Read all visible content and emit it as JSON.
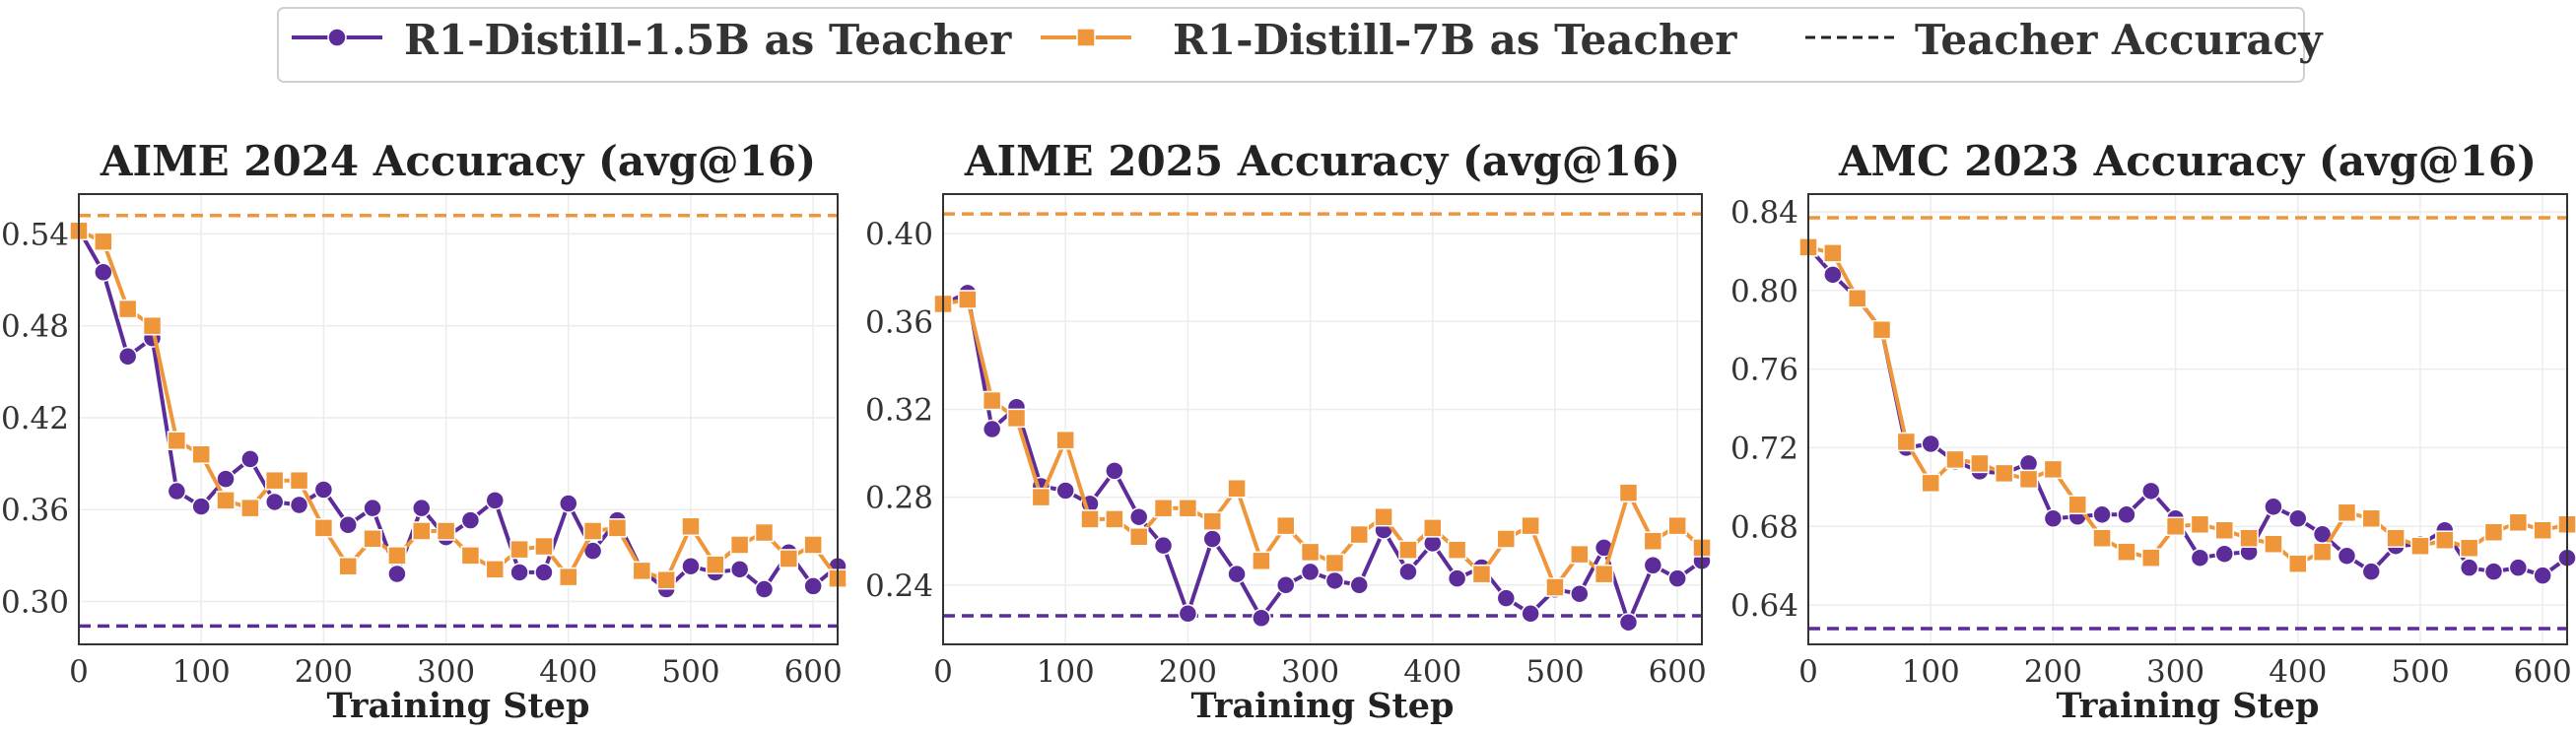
{
  "colors": {
    "purple": "#5B2C9A",
    "orange": "#F0963A",
    "teacher": "#222222"
  },
  "legend": {
    "items": [
      {
        "label": "R1-Distill-1.5B as Teacher",
        "color": "#5B2C9A",
        "marker": "circle",
        "style": "solid"
      },
      {
        "label": "R1-Distill-7B as Teacher",
        "color": "#F0963A",
        "marker": "square",
        "style": "solid"
      },
      {
        "label": "Teacher Accuracy",
        "color": "#222222",
        "marker": "none",
        "style": "dashed"
      }
    ]
  },
  "chart_data": [
    {
      "type": "line",
      "title": "AIME 2024 Accuracy (avg@16)",
      "xlabel": "Training Step",
      "ylabel": "",
      "xlim": [
        0,
        620
      ],
      "ylim": [
        0.272,
        0.566
      ],
      "xticks": [
        0,
        100,
        200,
        300,
        400,
        500,
        600
      ],
      "yticks": [
        0.3,
        0.36,
        0.42,
        0.48,
        0.54
      ],
      "ytick_labels": [
        "0.30",
        "0.36",
        "0.42",
        "0.48",
        "0.54"
      ],
      "grid": true,
      "x": [
        0,
        20,
        40,
        60,
        80,
        100,
        120,
        140,
        160,
        180,
        200,
        220,
        240,
        260,
        280,
        300,
        320,
        340,
        360,
        380,
        400,
        420,
        440,
        460,
        480,
        500,
        520,
        540,
        560,
        580,
        600,
        620
      ],
      "series": [
        {
          "name": "R1-Distill-1.5B as Teacher",
          "color": "#5B2C9A",
          "marker": "circle",
          "values": [
            0.543,
            0.515,
            0.46,
            0.472,
            0.372,
            0.362,
            0.38,
            0.393,
            0.365,
            0.363,
            0.373,
            0.35,
            0.361,
            0.318,
            0.361,
            0.342,
            0.353,
            0.366,
            0.319,
            0.319,
            0.364,
            0.333,
            0.353,
            0.32,
            0.308,
            0.323,
            0.319,
            0.321,
            0.308,
            0.332,
            0.31,
            0.323
          ]
        },
        {
          "name": "R1-Distill-7B as Teacher",
          "color": "#F0963A",
          "marker": "square",
          "values": [
            0.542,
            0.535,
            0.491,
            0.48,
            0.405,
            0.396,
            0.366,
            0.361,
            0.379,
            0.379,
            0.348,
            0.323,
            0.341,
            0.33,
            0.346,
            0.346,
            0.33,
            0.321,
            0.334,
            0.336,
            0.316,
            0.346,
            0.348,
            0.32,
            0.314,
            0.349,
            0.324,
            0.337,
            0.345,
            0.328,
            0.337,
            0.315
          ]
        }
      ],
      "teacher_lines": [
        {
          "color": "#F0963A",
          "value": 0.552
        },
        {
          "color": "#5B2C9A",
          "value": 0.284
        }
      ]
    },
    {
      "type": "line",
      "title": "AIME 2025 Accuracy (avg@16)",
      "xlabel": "Training Step",
      "ylabel": "",
      "xlim": [
        0,
        620
      ],
      "ylim": [
        0.213,
        0.418
      ],
      "xticks": [
        0,
        100,
        200,
        300,
        400,
        500,
        600
      ],
      "yticks": [
        0.24,
        0.28,
        0.32,
        0.36,
        0.4
      ],
      "ytick_labels": [
        "0.24",
        "0.28",
        "0.32",
        "0.36",
        "0.40"
      ],
      "grid": true,
      "x": [
        0,
        20,
        40,
        60,
        80,
        100,
        120,
        140,
        160,
        180,
        200,
        220,
        240,
        260,
        280,
        300,
        320,
        340,
        360,
        380,
        400,
        420,
        440,
        460,
        480,
        500,
        520,
        540,
        560,
        580,
        600,
        620
      ],
      "series": [
        {
          "name": "R1-Distill-1.5B as Teacher",
          "color": "#5B2C9A",
          "marker": "circle",
          "values": [
            0.368,
            0.373,
            0.311,
            0.321,
            0.285,
            0.283,
            0.277,
            0.292,
            0.271,
            0.258,
            0.227,
            0.261,
            0.245,
            0.225,
            0.24,
            0.246,
            0.242,
            0.24,
            0.265,
            0.246,
            0.259,
            0.243,
            0.248,
            0.234,
            0.227,
            0.238,
            0.236,
            0.257,
            0.223,
            0.249,
            0.243,
            0.251
          ]
        },
        {
          "name": "R1-Distill-7B as Teacher",
          "color": "#F0963A",
          "marker": "square",
          "values": [
            0.368,
            0.37,
            0.324,
            0.316,
            0.28,
            0.306,
            0.27,
            0.27,
            0.262,
            0.275,
            0.275,
            0.269,
            0.284,
            0.251,
            0.267,
            0.255,
            0.25,
            0.263,
            0.271,
            0.256,
            0.266,
            0.256,
            0.245,
            0.261,
            0.267,
            0.239,
            0.254,
            0.245,
            0.282,
            0.26,
            0.267,
            0.257
          ]
        }
      ],
      "teacher_lines": [
        {
          "color": "#F0963A",
          "value": 0.409
        },
        {
          "color": "#5B2C9A",
          "value": 0.226
        }
      ]
    },
    {
      "type": "line",
      "title": "AMC 2023 Accuracy (avg@16)",
      "xlabel": "Training Step",
      "ylabel": "",
      "xlim": [
        0,
        620
      ],
      "ylim": [
        0.62,
        0.849
      ],
      "xticks": [
        0,
        100,
        200,
        300,
        400,
        500,
        600
      ],
      "yticks": [
        0.64,
        0.68,
        0.72,
        0.76,
        0.8,
        0.84
      ],
      "ytick_labels": [
        "0.64",
        "0.68",
        "0.72",
        "0.76",
        "0.80",
        "0.84"
      ],
      "grid": true,
      "x": [
        0,
        20,
        40,
        60,
        80,
        100,
        120,
        140,
        160,
        180,
        200,
        220,
        240,
        260,
        280,
        300,
        320,
        340,
        360,
        380,
        400,
        420,
        440,
        460,
        480,
        500,
        520,
        540,
        560,
        580,
        600,
        620
      ],
      "series": [
        {
          "name": "R1-Distill-1.5B as Teacher",
          "color": "#5B2C9A",
          "marker": "circle",
          "values": [
            0.822,
            0.808,
            0.796,
            0.78,
            0.72,
            0.722,
            0.713,
            0.708,
            0.707,
            0.712,
            0.684,
            0.685,
            0.686,
            0.686,
            0.698,
            0.684,
            0.664,
            0.666,
            0.667,
            0.69,
            0.684,
            0.676,
            0.665,
            0.657,
            0.67,
            0.671,
            0.678,
            0.659,
            0.657,
            0.659,
            0.655,
            0.664
          ]
        },
        {
          "name": "R1-Distill-7B as Teacher",
          "color": "#F0963A",
          "marker": "square",
          "values": [
            0.822,
            0.819,
            0.796,
            0.78,
            0.723,
            0.702,
            0.714,
            0.712,
            0.707,
            0.704,
            0.709,
            0.691,
            0.674,
            0.667,
            0.664,
            0.68,
            0.681,
            0.678,
            0.674,
            0.671,
            0.661,
            0.667,
            0.687,
            0.684,
            0.674,
            0.67,
            0.673,
            0.669,
            0.677,
            0.682,
            0.678,
            0.681
          ]
        }
      ],
      "teacher_lines": [
        {
          "color": "#F0963A",
          "value": 0.837
        },
        {
          "color": "#5B2C9A",
          "value": 0.628
        }
      ]
    }
  ]
}
